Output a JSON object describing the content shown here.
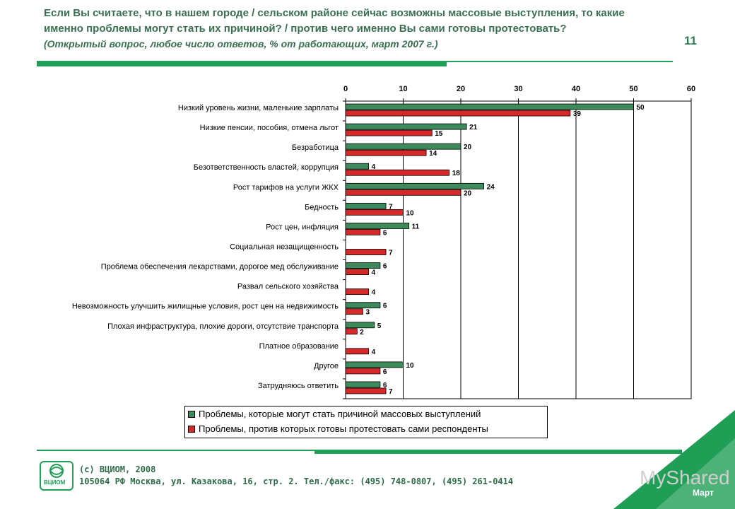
{
  "header": {
    "title_line1": "Если Вы считаете, что в нашем городе / сельском районе сейчас возможны массовые выступления, то какие",
    "title_line2": "именно проблемы могут стать их причиной? / против чего именно Вы сами готовы протестовать?",
    "subtitle": "(Открытый вопрос, любое число ответов, % от работающих, март 2007 г.)",
    "page_number": "11"
  },
  "chart_data": {
    "type": "bar",
    "orientation": "horizontal",
    "xlim": [
      0,
      60
    ],
    "xticks": [
      0,
      10,
      20,
      30,
      40,
      50,
      60
    ],
    "categories": [
      "Низкий уровень жизни, маленькие зарплаты",
      "Низкие пенсии, пособия, отмена льгот",
      "Безработица",
      "Безответственность властей, коррупция",
      "Рост тарифов на услуги ЖКХ",
      "Бедность",
      "Рост цен, инфляция",
      "Социальная незащищенность",
      "Проблема обеспечения лекарствами, дорогое мед обслуживание",
      "Развал сельского хозяйства",
      "Невозможность улучшить жилищные условия, рост цен на недвижимость",
      "Плохая инфраструктура, плохие дороги, отсутствие транспорта",
      "Платное образование",
      "Другое",
      "Затрудняюсь ответить"
    ],
    "series": [
      {
        "name": "Проблемы, которые могут стать причиной массовых выступлений",
        "color": "#3d8a5c",
        "values": [
          50,
          21,
          20,
          4,
          24,
          7,
          11,
          null,
          6,
          null,
          6,
          5,
          null,
          10,
          6
        ]
      },
      {
        "name": "Проблемы, против которых готовы протестовать сами респонденты",
        "color": "#d62a2a",
        "values": [
          39,
          15,
          14,
          18,
          20,
          10,
          6,
          7,
          4,
          4,
          3,
          2,
          4,
          6,
          7
        ]
      }
    ]
  },
  "footer": {
    "copyright": "(с) ВЦИОМ, 2008",
    "address": "105064 РФ Москва, ул. Казакова, 16, стр. 2.  Тел./факс: (495) 748-0807, (495) 261-0414",
    "logo_text": "ВЦИОМ",
    "watermark": "MyShared",
    "month_label": "Март"
  },
  "colors": {
    "accent": "#1f9e55",
    "title": "#3a6f52"
  }
}
